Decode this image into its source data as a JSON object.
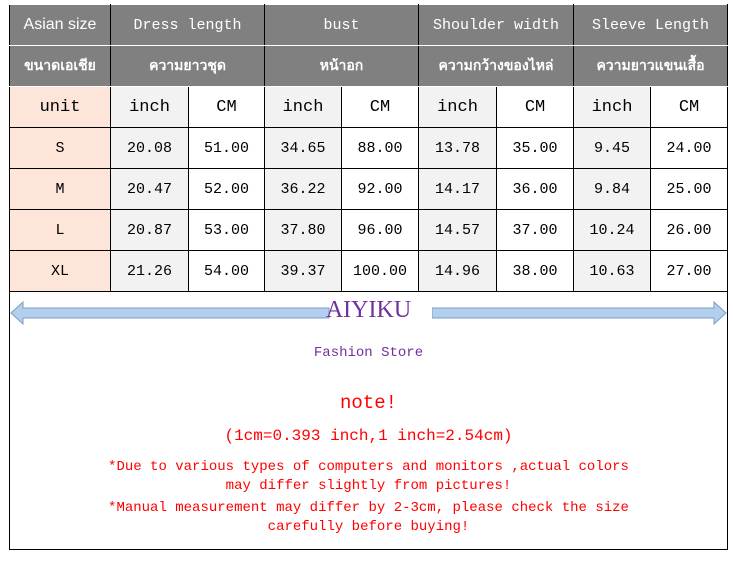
{
  "header": {
    "size_label": "Asian size",
    "columns": [
      "Dress length",
      "bust",
      "Shoulder width",
      "Sleeve Length"
    ],
    "size_label_th": "ขนาดเอเชีย",
    "columns_th": [
      "ความยาวชุด",
      "หน้าอก",
      "ความกว้างของไหล่",
      "ความยาวแขนเสื้อ"
    ],
    "unit_label": "unit",
    "inch": "inch",
    "cm": "CM"
  },
  "rows": [
    {
      "size": "S",
      "values": [
        "20.08",
        "51.00",
        "34.65",
        "88.00",
        "13.78",
        "35.00",
        "9.45",
        "24.00"
      ]
    },
    {
      "size": "M",
      "values": [
        "20.47",
        "52.00",
        "36.22",
        "92.00",
        "14.17",
        "36.00",
        "9.84",
        "25.00"
      ]
    },
    {
      "size": "L",
      "values": [
        "20.87",
        "53.00",
        "37.80",
        "96.00",
        "14.57",
        "37.00",
        "10.24",
        "26.00"
      ]
    },
    {
      "size": "XL",
      "values": [
        "21.26",
        "54.00",
        "39.37",
        "100.00",
        "14.96",
        "38.00",
        "10.63",
        "27.00"
      ]
    }
  ],
  "footer": {
    "brand": "AIYIKU",
    "store": "Fashion Store",
    "note": "note!",
    "conversion": "(1cm=0.393 inch,1 inch=2.54cm)",
    "disclaimer1_a": "*Due to various types of computers and monitors ,actual colors",
    "disclaimer1_b": "may differ slightly from pictures!",
    "disclaimer2_a": "*Manual measurement may differ by 2-3cm, please check the size",
    "disclaimer2_b": "carefully before  buying!"
  },
  "colors": {
    "header_bg": "#808080",
    "size_bg": "#fde5d9",
    "inch_bg": "#f2f2f2",
    "brand": "#7030a0",
    "note": "#ff0000",
    "arrow": "#b4cfee"
  }
}
